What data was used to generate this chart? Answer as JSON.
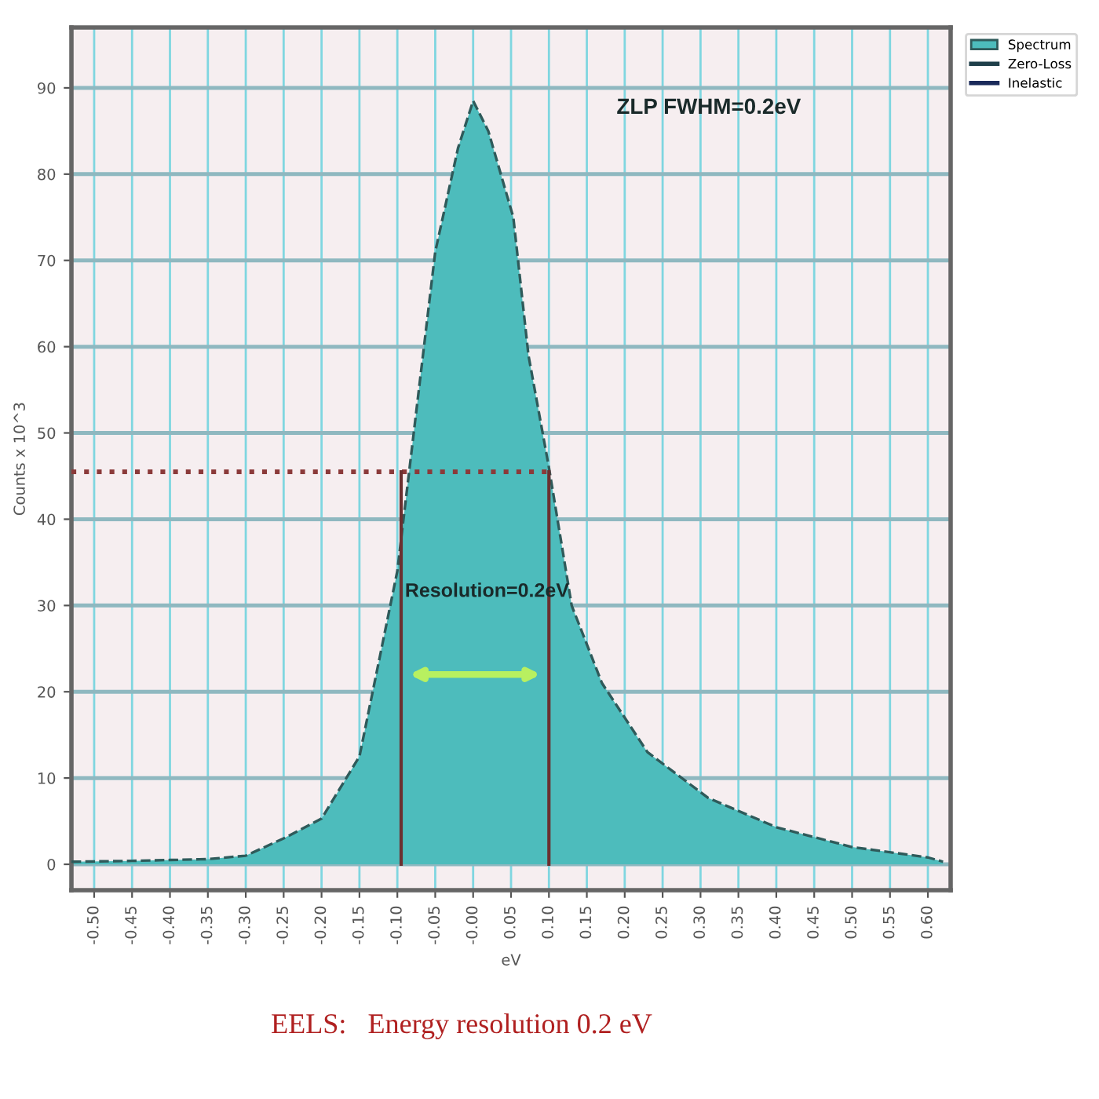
{
  "chart_data": {
    "type": "area",
    "xlabel": "eV",
    "ylabel": "Counts x 10^3",
    "xlim": [
      -0.53,
      0.63
    ],
    "ylim": [
      -3,
      97
    ],
    "xticks": [
      {
        "value": -0.5,
        "label": "-0.50"
      },
      {
        "value": -0.45,
        "label": "-0.45"
      },
      {
        "value": -0.4,
        "label": "-0.40"
      },
      {
        "value": -0.35,
        "label": "-0.35"
      },
      {
        "value": -0.3,
        "label": "-0.30"
      },
      {
        "value": -0.25,
        "label": "-0.25"
      },
      {
        "value": -0.2,
        "label": "-0.20"
      },
      {
        "value": -0.15,
        "label": "-0.15"
      },
      {
        "value": -0.1,
        "label": "-0.10"
      },
      {
        "value": -0.05,
        "label": "-0.05"
      },
      {
        "value": 0,
        "label": "-0.00"
      },
      {
        "value": 0.05,
        "label": "0.05"
      },
      {
        "value": 0.1,
        "label": "0.10"
      },
      {
        "value": 0.15,
        "label": "0.15"
      },
      {
        "value": 0.2,
        "label": "0.20"
      },
      {
        "value": 0.25,
        "label": "0.25"
      },
      {
        "value": 0.3,
        "label": "0.30"
      },
      {
        "value": 0.35,
        "label": "0.35"
      },
      {
        "value": 0.4,
        "label": "0.40"
      },
      {
        "value": 0.45,
        "label": "0.45"
      },
      {
        "value": 0.5,
        "label": "0.50"
      },
      {
        "value": 0.55,
        "label": "0.55"
      },
      {
        "value": 0.6,
        "label": "0.60"
      }
    ],
    "yticks": [
      0,
      10,
      20,
      30,
      40,
      50,
      60,
      70,
      80,
      90
    ],
    "grid": true,
    "legend": "top right",
    "series": [
      {
        "name": "Spectrum",
        "color": "#4dbcbc",
        "x": [
          -0.53,
          -0.45,
          -0.4,
          -0.35,
          -0.3,
          -0.25,
          -0.2,
          -0.15,
          -0.1,
          -0.05,
          -0.02,
          0.0,
          0.02,
          0.053,
          0.073,
          0.1,
          0.13,
          0.17,
          0.23,
          0.31,
          0.4,
          0.5,
          0.6,
          0.62
        ],
        "values": [
          0.3,
          0.4,
          0.5,
          0.6,
          1,
          3,
          5.3,
          12.5,
          34,
          71,
          83,
          88.5,
          85,
          75,
          59,
          46,
          30,
          21,
          13,
          7.7,
          4.3,
          2,
          0.8,
          0.3
        ]
      },
      {
        "name": "Zero-Loss",
        "type": "line",
        "color": "#1f3f4a",
        "values": [
          null
        ]
      },
      {
        "name": "Inelastic",
        "type": "line",
        "color": "#1a2a5a",
        "values": [
          null
        ]
      },
      {
        "type": "line",
        "color": "#8b3a3a",
        "line_style": "dotted",
        "x": [
          -0.53,
          0.1
        ],
        "values": [
          45.5,
          45.5
        ]
      },
      {
        "type": "line",
        "color": "#6b3030",
        "line_style": "solid",
        "x": [
          -0.095,
          -0.095
        ],
        "values": [
          0,
          45.5
        ]
      },
      {
        "type": "line",
        "color": "#6b3030",
        "line_style": "solid",
        "x": [
          0.1,
          0.1
        ],
        "values": [
          0,
          45.5
        ]
      }
    ],
    "annotations": [
      "ZLP FWHM=0.2eV",
      {
        "text": "Resolution=0.2eV",
        "x": -0.09,
        "y": 31
      },
      "EELS:   Energy resolution 0.2 eV"
    ]
  }
}
